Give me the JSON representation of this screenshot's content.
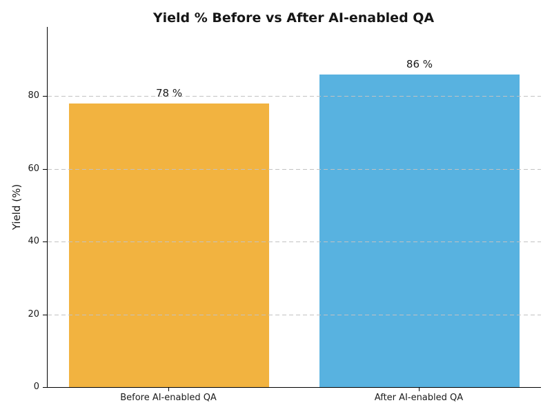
{
  "chart_data": {
    "type": "bar",
    "title": "Yield % Before vs After AI-enabled QA",
    "categories": [
      "Before AI-enabled QA",
      "After AI-enabled QA"
    ],
    "values": [
      78,
      86
    ],
    "value_labels": [
      "78 %",
      "86 %"
    ],
    "bar_colors": [
      "#f2b340",
      "#58b2e0"
    ],
    "xlabel": "",
    "ylabel": "Yield (%)",
    "ylim": [
      0,
      99
    ],
    "xlim": [
      -0.485,
      1.485
    ],
    "bar_width": 0.8,
    "yticks": [
      0,
      20,
      40,
      60,
      80
    ],
    "grid": "dashed-horizontal",
    "grid_color": "#c2c2c2",
    "grid_above_bars": true,
    "axis_color": "#000000",
    "text_color": "#1a1a1a",
    "legend": null,
    "background": "#ffffff"
  }
}
